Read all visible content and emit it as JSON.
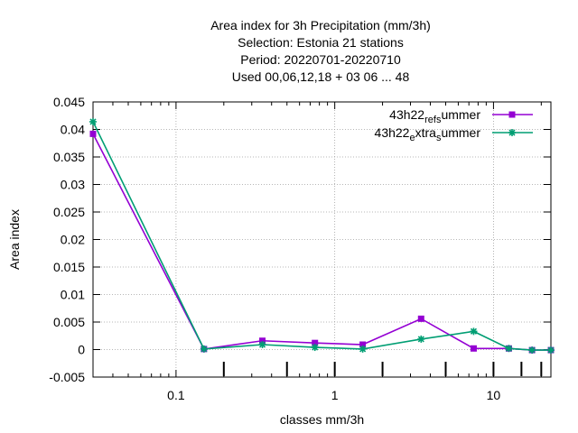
{
  "chart_data": {
    "type": "line",
    "title_lines": [
      "Area index  for 3h Precipitation (mm/3h)",
      "Selection: Estonia      21 stations",
      "Period: 20220701-20220710",
      "Used  00,06,12,18  + 03 06 ... 48"
    ],
    "xlabel": "classes mm/3h",
    "ylabel": "Area index",
    "x_scale": "log",
    "xlim": [
      0.03,
      23
    ],
    "ylim": [
      -0.005,
      0.045
    ],
    "x_ticks": [
      {
        "value": 0.1,
        "label": "0.1"
      },
      {
        "value": 1,
        "label": "1"
      },
      {
        "value": 10,
        "label": "10"
      }
    ],
    "y_ticks": [
      {
        "value": -0.005,
        "label": "-0.005"
      },
      {
        "value": 0,
        "label": "0"
      },
      {
        "value": 0.005,
        "label": "0.005"
      },
      {
        "value": 0.01,
        "label": "0.01"
      },
      {
        "value": 0.015,
        "label": "0.015"
      },
      {
        "value": 0.02,
        "label": "0.02"
      },
      {
        "value": 0.025,
        "label": "0.025"
      },
      {
        "value": 0.03,
        "label": "0.03"
      },
      {
        "value": 0.035,
        "label": "0.035"
      },
      {
        "value": 0.04,
        "label": "0.04"
      },
      {
        "value": 0.045,
        "label": "0.045"
      }
    ],
    "grid": true,
    "legend_position": "top-right",
    "legend_entries": [
      {
        "main": "43h22",
        "sub1": "ref",
        "mid": "",
        "sub2": "s",
        "end": "ummer"
      },
      {
        "main": "43h22",
        "sub1": "e",
        "mid": "xtra",
        "sub2": "s",
        "end": "ummer"
      }
    ],
    "series": [
      {
        "color": "#9400d3",
        "marker": "square",
        "x": [
          0.03,
          0.15,
          0.35,
          0.75,
          1.5,
          3.5,
          7.5,
          12.5,
          17.5,
          23
        ],
        "y": [
          0.0392,
          0.0001,
          0.0016,
          0.0012,
          0.0009,
          0.0056,
          0.0002,
          0.0002,
          -0.0001,
          -0.0001
        ]
      },
      {
        "color": "#009e73",
        "marker": "star",
        "x": [
          0.03,
          0.15,
          0.35,
          0.75,
          1.5,
          3.5,
          7.5,
          12.5,
          17.5,
          23
        ],
        "y": [
          0.0414,
          0.0001,
          0.0009,
          0.0004,
          0.0001,
          0.0019,
          0.0033,
          0.0002,
          -0.0001,
          -0.0001
        ]
      }
    ]
  }
}
